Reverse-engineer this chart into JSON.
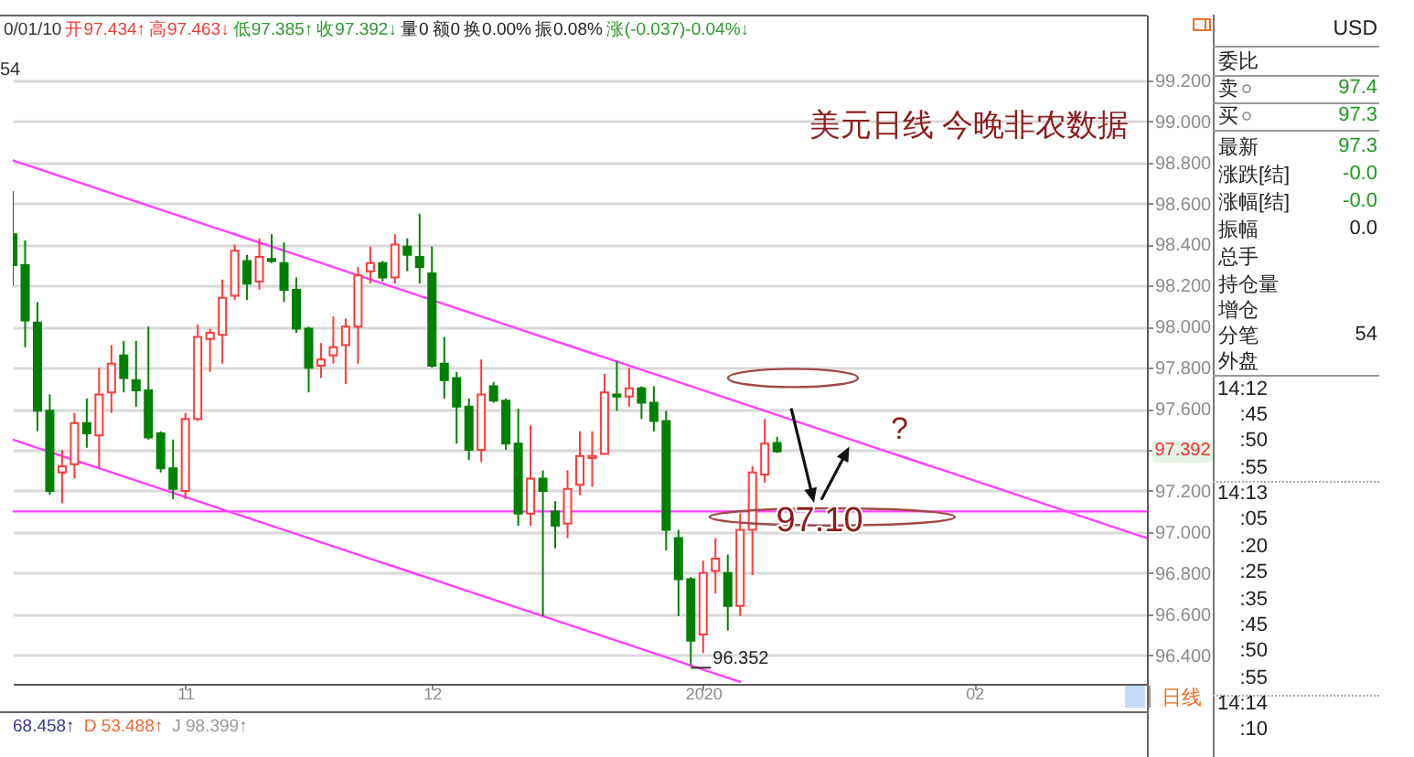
{
  "chart_data": [
    {
      "type": "candlestick",
      "title": "美元日线 今晚非农数据",
      "categories": [
        null,
        null,
        null,
        null,
        null,
        null,
        null,
        null,
        null,
        null,
        null,
        null,
        null,
        null,
        "11",
        null,
        null,
        null,
        null,
        null,
        null,
        null,
        null,
        null,
        null,
        null,
        null,
        null,
        null,
        null,
        null,
        null,
        null,
        null,
        "12",
        null,
        null,
        null,
        null,
        null,
        null,
        null,
        null,
        null,
        null,
        null,
        null,
        null,
        null,
        null,
        null,
        null,
        null,
        null,
        null,
        null,
        "2020",
        null,
        null,
        null,
        null,
        null,
        null,
        null,
        null,
        null,
        null,
        null,
        null,
        null,
        null,
        null,
        null,
        null,
        null,
        null,
        null,
        null,
        "02",
        null,
        null,
        null,
        null,
        null,
        null,
        null,
        null,
        null,
        null,
        null,
        null,
        null,
        null
      ],
      "ohlc": [
        [
          98.45,
          98.66,
          98.2,
          98.3
        ],
        [
          98.3,
          98.42,
          97.9,
          98.03
        ],
        [
          98.02,
          98.12,
          97.49,
          97.59
        ],
        [
          97.59,
          97.67,
          97.18,
          97.2
        ],
        [
          97.29,
          97.4,
          97.14,
          97.32
        ],
        [
          97.33,
          97.58,
          97.26,
          97.53
        ],
        [
          97.53,
          97.65,
          97.41,
          97.48
        ],
        [
          97.47,
          97.8,
          97.31,
          97.67
        ],
        [
          97.68,
          97.91,
          97.58,
          97.82
        ],
        [
          97.86,
          97.93,
          97.68,
          97.75
        ],
        [
          97.74,
          97.93,
          97.61,
          97.69
        ],
        [
          97.69,
          98.0,
          97.45,
          97.46
        ],
        [
          97.48,
          97.49,
          97.29,
          97.31
        ],
        [
          97.31,
          97.45,
          97.16,
          97.21
        ],
        [
          97.2,
          97.58,
          97.16,
          97.55
        ],
        [
          97.55,
          98.01,
          97.54,
          97.95
        ],
        [
          97.94,
          97.99,
          97.78,
          97.97
        ],
        [
          97.96,
          98.23,
          97.82,
          98.14
        ],
        [
          98.15,
          98.4,
          98.13,
          98.37
        ],
        [
          98.32,
          98.35,
          98.13,
          98.21
        ],
        [
          98.22,
          98.43,
          98.18,
          98.34
        ],
        [
          98.33,
          98.45,
          98.31,
          98.32
        ],
        [
          98.31,
          98.41,
          98.12,
          98.18
        ],
        [
          98.18,
          98.24,
          97.97,
          97.99
        ],
        [
          97.99,
          98.0,
          97.68,
          97.8
        ],
        [
          97.81,
          97.92,
          97.75,
          97.84
        ],
        [
          97.86,
          98.05,
          97.82,
          97.9
        ],
        [
          97.91,
          98.04,
          97.72,
          98.0
        ],
        [
          98.0,
          98.29,
          97.82,
          98.25
        ],
        [
          98.27,
          98.39,
          98.21,
          98.31
        ],
        [
          98.31,
          98.32,
          98.22,
          98.24
        ],
        [
          98.24,
          98.45,
          98.21,
          98.4
        ],
        [
          98.39,
          98.43,
          98.27,
          98.35
        ],
        [
          98.34,
          98.55,
          98.21,
          98.29
        ],
        [
          98.26,
          98.39,
          97.8,
          97.81
        ],
        [
          97.82,
          97.95,
          97.65,
          97.74
        ],
        [
          97.75,
          97.78,
          97.43,
          97.61
        ],
        [
          97.61,
          97.65,
          97.35,
          97.4
        ],
        [
          97.4,
          97.84,
          97.34,
          97.67
        ],
        [
          97.71,
          97.73,
          97.63,
          97.64
        ],
        [
          97.64,
          97.65,
          97.4,
          97.43
        ],
        [
          97.43,
          97.6,
          97.03,
          97.09
        ],
        [
          97.09,
          97.52,
          97.03,
          97.26
        ],
        [
          97.26,
          97.3,
          96.59,
          97.2
        ],
        [
          97.1,
          97.15,
          96.92,
          97.03
        ],
        [
          97.04,
          97.3,
          96.97,
          97.21
        ],
        [
          97.23,
          97.49,
          97.18,
          97.37
        ],
        [
          97.36,
          97.49,
          97.22,
          97.37
        ],
        [
          97.38,
          97.77,
          97.38,
          97.68
        ],
        [
          97.67,
          97.83,
          97.59,
          97.66
        ],
        [
          97.66,
          97.8,
          97.61,
          97.7
        ],
        [
          97.7,
          97.71,
          97.55,
          97.63
        ],
        [
          97.63,
          97.71,
          97.49,
          97.54
        ],
        [
          97.54,
          97.59,
          96.91,
          97.01
        ],
        [
          96.97,
          97.01,
          96.59,
          96.77
        ],
        [
          96.77,
          96.78,
          96.352,
          96.47
        ],
        [
          96.5,
          96.86,
          96.41,
          96.8
        ],
        [
          96.81,
          96.97,
          96.7,
          96.87
        ],
        [
          96.8,
          96.89,
          96.52,
          96.64
        ],
        [
          96.64,
          97.09,
          96.59,
          97.01
        ],
        [
          97.01,
          97.32,
          96.79,
          97.29
        ],
        [
          97.28,
          97.55,
          97.24,
          97.43
        ],
        [
          97.434,
          97.463,
          97.385,
          97.392
        ],
        null,
        null,
        null,
        null,
        null,
        null,
        null,
        null,
        null,
        null,
        null,
        null,
        null,
        null,
        null,
        null,
        null,
        null,
        null,
        null,
        null,
        null,
        null,
        null,
        null,
        null,
        null,
        null,
        null,
        null
      ],
      "colors": [
        "#008000",
        "#008000",
        "#008000",
        "#008000",
        "#ff3b3b",
        "#ff3b3b",
        "#008000",
        "#ff3b3b",
        "#ff3b3b",
        "#008000",
        "#008000",
        "#008000",
        "#008000",
        "#008000",
        "#ff3b3b",
        "#ff3b3b",
        "#ff3b3b",
        "#ff3b3b",
        "#ff3b3b",
        "#008000",
        "#ff3b3b",
        "#008000",
        "#008000",
        "#008000",
        "#008000",
        "#ff3b3b",
        "#ff3b3b",
        "#ff3b3b",
        "#ff3b3b",
        "#ff3b3b",
        "#008000",
        "#ff3b3b",
        "#008000",
        "#008000",
        "#008000",
        "#008000",
        "#008000",
        "#008000",
        "#ff3b3b",
        "#008000",
        "#008000",
        "#008000",
        "#ff3b3b",
        "#008000",
        "#008000",
        "#ff3b3b",
        "#ff3b3b",
        "#ff3b3b",
        "#ff3b3b",
        "#008000",
        "#ff3b3b",
        "#008000",
        "#008000",
        "#008000",
        "#008000",
        "#008000",
        "#ff3b3b",
        "#ff3b3b",
        "#008000",
        "#ff3b3b",
        "#ff3b3b",
        "#ff3b3b",
        "#008000",
        null,
        null,
        null,
        null,
        null,
        null,
        null,
        null,
        null,
        null,
        null,
        null,
        null,
        null,
        null,
        null,
        null,
        null,
        null,
        null,
        null,
        null,
        null,
        null,
        null,
        null,
        null,
        null,
        null,
        null
      ],
      "ylim": [
        96.26,
        99.52
      ],
      "yticks": [
        {
          "value": 96.4,
          "label": "96.400"
        },
        {
          "value": 96.6,
          "label": "96.600"
        },
        {
          "value": 96.8,
          "label": "96.800"
        },
        {
          "value": 97,
          "label": "97.000"
        },
        {
          "value": 97.2,
          "label": "97.200"
        },
        {
          "value": 97.4,
          "label": null
        },
        {
          "value": 97.6,
          "label": "97.600"
        },
        {
          "value": 97.8,
          "label": "97.800"
        },
        {
          "value": 98,
          "label": "98.000"
        },
        {
          "value": 98.2,
          "label": "98.200"
        },
        {
          "value": 98.4,
          "label": "98.400"
        },
        {
          "value": 98.6,
          "label": "98.600"
        },
        {
          "value": 98.8,
          "label": "98.800"
        },
        {
          "value": 99,
          "label": "99.000"
        },
        {
          "value": 99.2,
          "label": "99.200"
        }
      ],
      "grid": "y",
      "series": [
        {
          "type": "line",
          "color": "#ff40ff",
          "values": [
            98.81,
            98.79,
            98.77,
            98.75,
            98.73,
            98.71,
            98.69,
            98.67,
            98.65,
            98.63,
            98.61,
            98.59,
            98.57,
            98.55,
            98.53,
            98.51,
            98.49,
            98.47,
            98.45,
            98.43,
            98.41,
            98.39,
            98.37,
            98.35,
            98.33,
            98.31,
            98.29,
            98.27,
            98.25,
            98.23,
            98.21,
            98.19,
            98.17,
            98.15,
            98.13,
            98.11,
            98.09,
            98.07,
            98.05,
            98.03,
            98.01,
            97.99,
            97.97,
            97.95,
            97.93,
            97.91,
            97.89,
            97.87,
            97.85,
            97.83,
            97.81,
            97.79,
            97.77,
            97.75,
            97.73,
            97.71,
            97.69,
            97.67,
            97.65,
            97.63,
            97.61,
            97.59,
            97.57,
            97.55,
            97.53,
            97.51,
            97.49,
            97.47,
            97.45,
            97.43,
            97.41,
            97.39,
            97.37,
            97.35,
            97.33,
            97.31,
            97.29,
            97.27,
            97.25,
            97.23,
            97.21,
            97.19,
            97.17,
            97.15,
            97.13,
            97.11,
            97.09,
            97.07,
            97.05,
            97.03,
            97.01,
            96.99,
            96.97
          ]
        },
        {
          "type": "line",
          "color": "#ff40ff",
          "values": [
            97.45,
            97.43,
            97.41,
            97.39,
            97.37,
            97.35,
            97.33,
            97.31,
            97.29,
            97.27,
            97.25,
            97.23,
            97.21,
            97.19,
            97.17,
            97.15,
            97.13,
            97.11,
            97.09,
            97.07,
            97.05,
            97.03,
            97.01,
            96.99,
            96.97,
            96.95,
            96.93,
            96.91,
            96.89,
            96.87,
            96.85,
            96.83,
            96.81,
            96.79,
            96.77,
            96.75,
            96.73,
            96.71,
            96.69,
            96.67,
            96.65,
            96.63,
            96.61,
            96.59,
            96.57,
            96.55,
            96.53,
            96.51,
            96.49,
            96.47,
            96.45,
            96.43,
            96.41,
            96.39,
            96.37,
            96.35,
            96.33,
            96.31,
            96.29,
            96.27,
            null,
            null,
            null,
            null,
            null,
            null,
            null,
            null,
            null,
            null,
            null,
            null,
            null,
            null,
            null,
            null,
            null,
            null,
            null,
            null,
            null,
            null,
            null,
            null,
            null,
            null,
            null,
            null,
            null,
            null,
            null,
            null,
            null
          ]
        }
      ],
      "ref_lines": [
        {
          "axis": "y",
          "value": 97.1,
          "label": "97.10",
          "color": "#ff40ff"
        }
      ],
      "annotations": [
        "0/01/10",
        "开97.434↑",
        "高97.463↓",
        "低97.385↑",
        "收97.392↓",
        "量0",
        "额0",
        "换0.00%",
        "振0.08%",
        "涨(-0.037)-0.04%↓",
        "54",
        "68.458↑",
        "D 53.488↑",
        "J 98.399↑",
        "日线",
        "?",
        "97.392",
        "96.352"
      ]
    },
    {
      "type": "other",
      "title": "USD",
      "annotations": [
        "委比",
        "卖",
        "97.4",
        "买",
        "97.3",
        "最新",
        "97.3",
        "涨跌[结]",
        "-0.0",
        "涨幅[结]",
        "-0.0",
        "振幅",
        "0.0",
        "总手",
        "持仓量",
        "增仓",
        "分笔",
        "54",
        "外盘",
        "14:12",
        ":45",
        ":50",
        ":55",
        "14:13",
        ":05",
        ":20",
        ":25",
        ":35",
        ":45",
        ":50",
        ":55",
        "14:14",
        ":10"
      ]
    }
  ]
}
